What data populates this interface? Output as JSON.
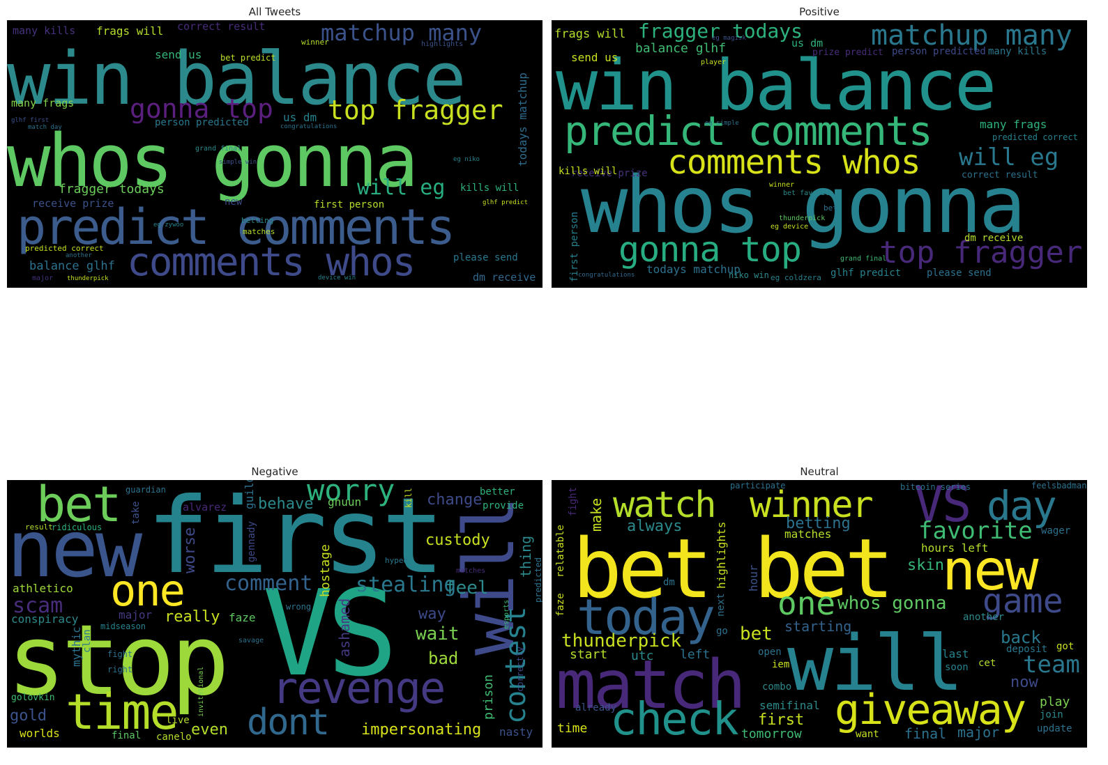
{
  "figure": {
    "panels": [
      {
        "title": "All Tweets",
        "words": [
          {
            "text": "win balance"
          },
          {
            "text": "whos gonna"
          },
          {
            "text": "predict comments"
          },
          {
            "text": "comments whos"
          },
          {
            "text": "gonna top"
          },
          {
            "text": "top fragger"
          },
          {
            "text": "matchup many"
          },
          {
            "text": "will eg"
          },
          {
            "text": "fragger todays"
          },
          {
            "text": "balance glhf"
          },
          {
            "text": "receive prize"
          },
          {
            "text": "many kills"
          },
          {
            "text": "frags will"
          },
          {
            "text": "correct result"
          },
          {
            "text": "send us"
          },
          {
            "text": "bet predict"
          },
          {
            "text": "many frags"
          },
          {
            "text": "person predicted"
          },
          {
            "text": "us dm"
          },
          {
            "text": "first person"
          },
          {
            "text": "kills will"
          },
          {
            "text": "predicted correct"
          },
          {
            "text": "please send"
          },
          {
            "text": "dm receive"
          },
          {
            "text": "todays matchup"
          },
          {
            "text": "new"
          },
          {
            "text": "grand final"
          },
          {
            "text": "glhf first"
          },
          {
            "text": "match day"
          },
          {
            "text": "eg zywoo"
          },
          {
            "text": "thunderpick"
          },
          {
            "text": "major"
          },
          {
            "text": "winner"
          },
          {
            "text": "highlights"
          },
          {
            "text": "congratulations"
          },
          {
            "text": "eg niko"
          },
          {
            "text": "betting"
          },
          {
            "text": "matches"
          },
          {
            "text": "simple win"
          },
          {
            "text": "another"
          },
          {
            "text": "device win"
          },
          {
            "text": "glhf predict"
          }
        ]
      },
      {
        "title": "Positive",
        "words": [
          {
            "text": "win balance"
          },
          {
            "text": "whos gonna"
          },
          {
            "text": "predict comments"
          },
          {
            "text": "comments whos"
          },
          {
            "text": "matchup many"
          },
          {
            "text": "gonna top"
          },
          {
            "text": "top fragger"
          },
          {
            "text": "fragger todays"
          },
          {
            "text": "will eg"
          },
          {
            "text": "frags will"
          },
          {
            "text": "balance glhf"
          },
          {
            "text": "send us"
          },
          {
            "text": "prize predict"
          },
          {
            "text": "person predicted"
          },
          {
            "text": "many kills"
          },
          {
            "text": "us dm"
          },
          {
            "text": "many frags"
          },
          {
            "text": "predicted correct"
          },
          {
            "text": "correct result"
          },
          {
            "text": "receive prize"
          },
          {
            "text": "kills will"
          },
          {
            "text": "first person"
          },
          {
            "text": "dm receive"
          },
          {
            "text": "please send"
          },
          {
            "text": "todays matchup"
          },
          {
            "text": "glhf predict"
          },
          {
            "text": "niko win"
          },
          {
            "text": "eg coldzera"
          },
          {
            "text": "grand final"
          },
          {
            "text": "thunderpick"
          },
          {
            "text": "eg device"
          },
          {
            "text": "bet favorite"
          },
          {
            "text": "winner"
          },
          {
            "text": "congratulations"
          },
          {
            "text": "eg simple"
          },
          {
            "text": "player"
          },
          {
            "text": "eg magisk"
          },
          {
            "text": "bet"
          }
        ]
      },
      {
        "title": "Negative",
        "words": [
          {
            "text": "first"
          },
          {
            "text": "VS"
          },
          {
            "text": "stop"
          },
          {
            "text": "new"
          },
          {
            "text": "will"
          },
          {
            "text": "bet"
          },
          {
            "text": "one"
          },
          {
            "text": "time"
          },
          {
            "text": "revenge"
          },
          {
            "text": "dont"
          },
          {
            "text": "worry"
          },
          {
            "text": "contest"
          },
          {
            "text": "comment"
          },
          {
            "text": "stealing"
          },
          {
            "text": "custody"
          },
          {
            "text": "impersonating"
          },
          {
            "text": "behave"
          },
          {
            "text": "change"
          },
          {
            "text": "scam"
          },
          {
            "text": "athletico"
          },
          {
            "text": "really"
          },
          {
            "text": "feel"
          },
          {
            "text": "wait"
          },
          {
            "text": "way"
          },
          {
            "text": "bad"
          },
          {
            "text": "even"
          },
          {
            "text": "worse"
          },
          {
            "text": "hostage"
          },
          {
            "text": "ashamed"
          },
          {
            "text": "prison"
          },
          {
            "text": "thing"
          },
          {
            "text": "gold"
          },
          {
            "text": "worlds"
          },
          {
            "text": "live"
          },
          {
            "text": "final"
          },
          {
            "text": "canelo"
          },
          {
            "text": "nasty"
          },
          {
            "text": "faze"
          },
          {
            "text": "major"
          },
          {
            "text": "conspiracy"
          },
          {
            "text": "ghuun"
          },
          {
            "text": "alvarez"
          },
          {
            "text": "gennady"
          },
          {
            "text": "guild"
          },
          {
            "text": "mythic"
          },
          {
            "text": "clan"
          },
          {
            "text": "golovkin"
          },
          {
            "text": "midseason"
          },
          {
            "text": "better"
          },
          {
            "text": "provide"
          },
          {
            "text": "take"
          },
          {
            "text": "guardian"
          },
          {
            "text": "ridiculous"
          },
          {
            "text": "result"
          },
          {
            "text": "fight"
          },
          {
            "text": "right"
          },
          {
            "text": "predicted"
          },
          {
            "text": "correctly"
          },
          {
            "text": "kill"
          },
          {
            "text": "invitational"
          },
          {
            "text": "wrong"
          },
          {
            "text": "savage"
          },
          {
            "text": "hyped"
          },
          {
            "text": "matches"
          },
          {
            "text": "esports"
          }
        ]
      },
      {
        "title": "Neutral",
        "words": [
          {
            "text": "bet bet"
          },
          {
            "text": "match"
          },
          {
            "text": "will"
          },
          {
            "text": "VS"
          },
          {
            "text": "watch"
          },
          {
            "text": "winner"
          },
          {
            "text": "day"
          },
          {
            "text": "new"
          },
          {
            "text": "today"
          },
          {
            "text": "check"
          },
          {
            "text": "giveaway"
          },
          {
            "text": "game"
          },
          {
            "text": "one"
          },
          {
            "text": "whos gonna"
          },
          {
            "text": "favorite"
          },
          {
            "text": "thunderpick"
          },
          {
            "text": "team"
          },
          {
            "text": "bet"
          },
          {
            "text": "always"
          },
          {
            "text": "betting"
          },
          {
            "text": "matches"
          },
          {
            "text": "hours left"
          },
          {
            "text": "skin"
          },
          {
            "text": "starting"
          },
          {
            "text": "back"
          },
          {
            "text": "deposit"
          },
          {
            "text": "now"
          },
          {
            "text": "play"
          },
          {
            "text": "start"
          },
          {
            "text": "utc"
          },
          {
            "text": "left"
          },
          {
            "text": "time"
          },
          {
            "text": "first"
          },
          {
            "text": "semifinal"
          },
          {
            "text": "tomorrow"
          },
          {
            "text": "final"
          },
          {
            "text": "major"
          },
          {
            "text": "want"
          },
          {
            "text": "join"
          },
          {
            "text": "update"
          },
          {
            "text": "last"
          },
          {
            "text": "soon"
          },
          {
            "text": "cet"
          },
          {
            "text": "got"
          },
          {
            "text": "wager"
          },
          {
            "text": "highlights"
          },
          {
            "text": "make"
          },
          {
            "text": "relatable"
          },
          {
            "text": "faze"
          },
          {
            "text": "hour"
          },
          {
            "text": "next"
          },
          {
            "text": "go"
          },
          {
            "text": "dm"
          },
          {
            "text": "iem"
          },
          {
            "text": "combo"
          },
          {
            "text": "another"
          },
          {
            "text": "already"
          },
          {
            "text": "open"
          },
          {
            "text": "fight"
          },
          {
            "text": "bitcoin series"
          },
          {
            "text": "feelsbadman"
          },
          {
            "text": "participate"
          }
        ]
      }
    ]
  }
}
